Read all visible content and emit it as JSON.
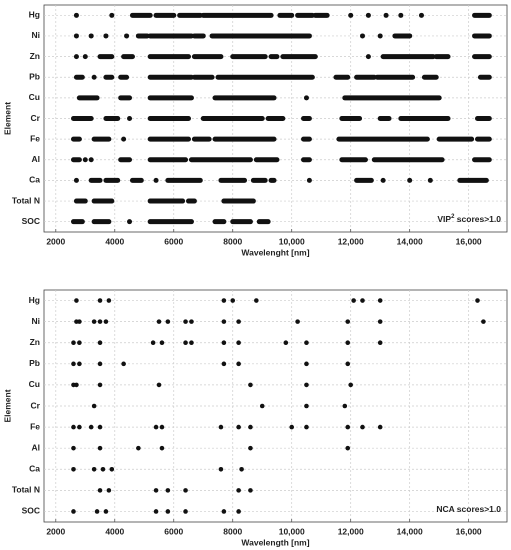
{
  "chart_data": [
    {
      "type": "strip",
      "y_label": "Element",
      "x_label": "Wavelenght [nm]",
      "annotation": "VIP",
      "annotation_superscript": "2",
      "annotation_suffix": " scores>1.0",
      "categories": [
        "Hg",
        "Ni",
        "Zn",
        "Pb",
        "Cu",
        "Cr",
        "Fe",
        "Al",
        "Ca",
        "Total N",
        "SOC"
      ],
      "values": [
        [
          [
            2700,
            2700
          ],
          [
            3900,
            3900
          ],
          [
            4600,
            5200
          ],
          [
            5400,
            6000
          ],
          [
            6200,
            6900
          ],
          [
            7000,
            9300
          ],
          [
            9600,
            10000
          ],
          [
            10200,
            10700
          ],
          [
            10800,
            11200
          ],
          [
            12000,
            12000
          ],
          [
            12600,
            12600
          ],
          [
            13200,
            13200
          ],
          [
            13700,
            13700
          ],
          [
            14400,
            14400
          ],
          [
            16200,
            16700
          ]
        ],
        [
          [
            2700,
            2700
          ],
          [
            3200,
            3200
          ],
          [
            3700,
            3700
          ],
          [
            4400,
            4400
          ],
          [
            4800,
            5100
          ],
          [
            5200,
            6600
          ],
          [
            6700,
            7000
          ],
          [
            7300,
            10600
          ],
          [
            12400,
            12400
          ],
          [
            13000,
            13000
          ],
          [
            13500,
            14000
          ],
          [
            16200,
            16700
          ]
        ],
        [
          [
            2700,
            2700
          ],
          [
            3000,
            3000
          ],
          [
            3500,
            3900
          ],
          [
            4300,
            4600
          ],
          [
            5200,
            6500
          ],
          [
            6700,
            7600
          ],
          [
            8000,
            9100
          ],
          [
            9300,
            9500
          ],
          [
            9700,
            10800
          ],
          [
            12600,
            12600
          ],
          [
            13100,
            14800
          ],
          [
            14900,
            15300
          ],
          [
            16200,
            16700
          ]
        ],
        [
          [
            2700,
            2900
          ],
          [
            3300,
            3300
          ],
          [
            3700,
            3900
          ],
          [
            4200,
            4400
          ],
          [
            5200,
            6600
          ],
          [
            6700,
            7300
          ],
          [
            7500,
            10700
          ],
          [
            11500,
            11900
          ],
          [
            12200,
            12800
          ],
          [
            12900,
            14100
          ],
          [
            14500,
            14900
          ],
          [
            16400,
            16700
          ]
        ],
        [
          [
            2800,
            3400
          ],
          [
            4200,
            4500
          ],
          [
            5200,
            6600
          ],
          [
            7400,
            9400
          ],
          [
            10500,
            10500
          ],
          [
            11800,
            15000
          ]
        ],
        [
          [
            2600,
            3200
          ],
          [
            3700,
            4100
          ],
          [
            4500,
            4500
          ],
          [
            5200,
            6500
          ],
          [
            7000,
            9000
          ],
          [
            9200,
            9700
          ],
          [
            10400,
            10600
          ],
          [
            11700,
            12300
          ],
          [
            13000,
            13300
          ],
          [
            13700,
            15300
          ],
          [
            16300,
            16700
          ]
        ],
        [
          [
            2600,
            2800
          ],
          [
            3300,
            3800
          ],
          [
            4300,
            4300
          ],
          [
            5200,
            6500
          ],
          [
            6700,
            7200
          ],
          [
            7400,
            9400
          ],
          [
            10400,
            10600
          ],
          [
            11600,
            14600
          ],
          [
            15000,
            16100
          ],
          [
            16300,
            16700
          ]
        ],
        [
          [
            2600,
            2800
          ],
          [
            3000,
            3000
          ],
          [
            3200,
            3200
          ],
          [
            4200,
            4500
          ],
          [
            5200,
            6400
          ],
          [
            6600,
            8600
          ],
          [
            8800,
            9500
          ],
          [
            10400,
            10600
          ],
          [
            11700,
            12500
          ],
          [
            12800,
            15100
          ],
          [
            16200,
            16700
          ]
        ],
        [
          [
            2700,
            2700
          ],
          [
            3200,
            3500
          ],
          [
            3700,
            4100
          ],
          [
            4600,
            4900
          ],
          [
            5400,
            5400
          ],
          [
            5800,
            6900
          ],
          [
            7600,
            8400
          ],
          [
            8700,
            9100
          ],
          [
            9300,
            9400
          ],
          [
            10600,
            10600
          ],
          [
            12200,
            12700
          ],
          [
            13100,
            13100
          ],
          [
            14000,
            14000
          ],
          [
            14700,
            14700
          ],
          [
            15700,
            16600
          ]
        ],
        [
          [
            2700,
            3000
          ],
          [
            3300,
            3900
          ],
          [
            5200,
            6300
          ],
          [
            6500,
            6700
          ],
          [
            7700,
            8700
          ]
        ],
        [
          [
            2600,
            2900
          ],
          [
            3300,
            3800
          ],
          [
            4500,
            4500
          ],
          [
            5200,
            6600
          ],
          [
            7400,
            7700
          ],
          [
            8000,
            8600
          ],
          [
            8900,
            9200
          ]
        ]
      ],
      "color": "#111111",
      "xlim": [
        1600,
        17300
      ],
      "xticks": [
        2000,
        4000,
        6000,
        8000,
        {
          "value": 10000,
          "label": "10,000"
        },
        {
          "value": 12000,
          "label": "12,000"
        },
        {
          "value": 14000,
          "label": "14,000"
        },
        {
          "value": 16000,
          "label": "16,000"
        }
      ],
      "grid": true
    },
    {
      "type": "dotplot",
      "y_label": "Element",
      "x_label": "Wavelength [nm]",
      "annotation": "NCA scores>1.0",
      "categories": [
        "Hg",
        "Ni",
        "Zn",
        "Pb",
        "Cu",
        "Cr",
        "Fe",
        "Al",
        "Ca",
        "Total N",
        "SOC"
      ],
      "values": [
        [
          2700,
          3500,
          3800,
          7700,
          8000,
          8800,
          12100,
          12400,
          13000,
          16300
        ],
        [
          2700,
          2800,
          3300,
          3500,
          3700,
          5500,
          5800,
          6400,
          6600,
          7700,
          8200,
          10200,
          11900,
          13000,
          16500
        ],
        [
          2600,
          2800,
          3500,
          5300,
          5600,
          6400,
          6600,
          7700,
          8200,
          9800,
          10500,
          11900,
          13000
        ],
        [
          2600,
          2800,
          3500,
          4300,
          7700,
          8200,
          10500,
          11900
        ],
        [
          2600,
          2700,
          3500,
          5500,
          8600,
          10500,
          12000
        ],
        [
          3300,
          9000,
          10500,
          11800
        ],
        [
          2600,
          2800,
          3200,
          3500,
          5400,
          5600,
          7600,
          8200,
          8600,
          10000,
          10500,
          11900,
          12400,
          13000
        ],
        [
          2600,
          3500,
          4800,
          5600,
          8600,
          11900
        ],
        [
          2600,
          3300,
          3600,
          3900,
          7600,
          8300
        ],
        [
          3500,
          3800,
          5400,
          5800,
          6400,
          8200,
          8600
        ],
        [
          2600,
          3400,
          3700,
          5400,
          5800,
          6400,
          7700,
          8200
        ]
      ],
      "color": "#111111",
      "xlim": [
        1600,
        17300
      ],
      "xticks": [
        2000,
        4000,
        6000,
        8000,
        {
          "value": 10000,
          "label": "10,000"
        },
        {
          "value": 12000,
          "label": "12,000"
        },
        {
          "value": 14000,
          "label": "14,000"
        },
        {
          "value": 16000,
          "label": "16,000"
        }
      ],
      "grid": true
    }
  ]
}
